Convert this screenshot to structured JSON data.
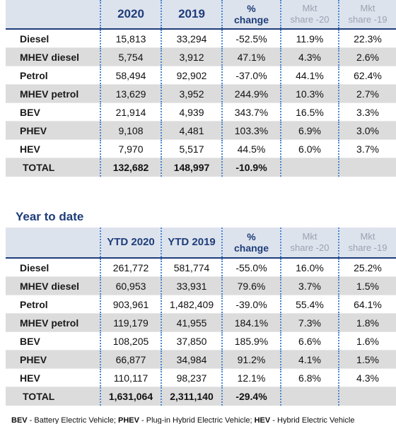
{
  "monthly": {
    "headers": {
      "col1": "2020",
      "col2": "2019",
      "col3_line1": "%",
      "col3_line2": "change",
      "col4_line1": "Mkt",
      "col4_line2": "share -20",
      "col5_line1": "Mkt",
      "col5_line2": "share -19"
    },
    "rows": [
      {
        "label": "Diesel",
        "v1": "15,813",
        "v2": "33,294",
        "chg": "-52.5%",
        "s20": "11.9%",
        "s19": "22.3%"
      },
      {
        "label": "MHEV diesel",
        "v1": "5,754",
        "v2": "3,912",
        "chg": "47.1%",
        "s20": "4.3%",
        "s19": "2.6%"
      },
      {
        "label": "Petrol",
        "v1": "58,494",
        "v2": "92,902",
        "chg": "-37.0%",
        "s20": "44.1%",
        "s19": "62.4%"
      },
      {
        "label": "MHEV petrol",
        "v1": "13,629",
        "v2": "3,952",
        "chg": "244.9%",
        "s20": "10.3%",
        "s19": "2.7%"
      },
      {
        "label": "BEV",
        "v1": "21,914",
        "v2": "4,939",
        "chg": "343.7%",
        "s20": "16.5%",
        "s19": "3.3%"
      },
      {
        "label": "PHEV",
        "v1": "9,108",
        "v2": "4,481",
        "chg": "103.3%",
        "s20": "6.9%",
        "s19": "3.0%"
      },
      {
        "label": "HEV",
        "v1": "7,970",
        "v2": "5,517",
        "chg": "44.5%",
        "s20": "6.0%",
        "s19": "3.7%"
      }
    ],
    "total": {
      "label": "TOTAL",
      "v1": "132,682",
      "v2": "148,997",
      "chg": "-10.9%"
    }
  },
  "ytd": {
    "section_title": "Year to date",
    "headers": {
      "col1": "YTD 2020",
      "col2": "YTD 2019",
      "col3_line1": "%",
      "col3_line2": "change",
      "col4_line1": "Mkt",
      "col4_line2": "share -20",
      "col5_line1": "Mkt",
      "col5_line2": "share -19"
    },
    "rows": [
      {
        "label": "Diesel",
        "v1": "261,772",
        "v2": "581,774",
        "chg": "-55.0%",
        "s20": "16.0%",
        "s19": "25.2%"
      },
      {
        "label": "MHEV diesel",
        "v1": "60,953",
        "v2": "33,931",
        "chg": "79.6%",
        "s20": "3.7%",
        "s19": "1.5%"
      },
      {
        "label": "Petrol",
        "v1": "903,961",
        "v2": "1,482,409",
        "chg": "-39.0%",
        "s20": "55.4%",
        "s19": "64.1%"
      },
      {
        "label": "MHEV petrol",
        "v1": "119,179",
        "v2": "41,955",
        "chg": "184.1%",
        "s20": "7.3%",
        "s19": "1.8%"
      },
      {
        "label": "BEV",
        "v1": "108,205",
        "v2": "37,850",
        "chg": "185.9%",
        "s20": "6.6%",
        "s19": "1.6%"
      },
      {
        "label": "PHEV",
        "v1": "66,877",
        "v2": "34,984",
        "chg": "91.2%",
        "s20": "4.1%",
        "s19": "1.5%"
      },
      {
        "label": "HEV",
        "v1": "110,117",
        "v2": "98,237",
        "chg": "12.1%",
        "s20": "6.8%",
        "s19": "4.3%"
      }
    ],
    "total": {
      "label": "TOTAL",
      "v1": "1,631,064",
      "v2": "2,311,140",
      "chg": "-29.4%"
    }
  },
  "footnote": {
    "t1": "BEV",
    "t2": " - Battery Electric Vehicle; ",
    "t3": "PHEV",
    "t4": " - Plug-in Hybrid Electric Vehicle; ",
    "t5": "HEV",
    "t6": " - Hybrid Electric Vehicle"
  }
}
